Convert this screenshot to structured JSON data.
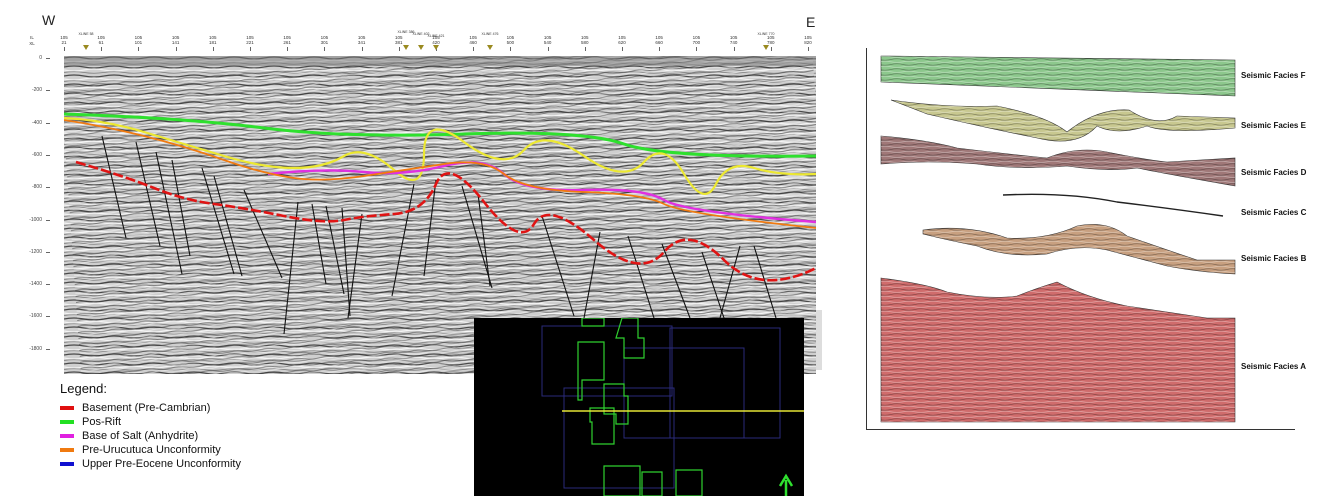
{
  "section": {
    "west": "W",
    "east": "E",
    "il_label": "IL",
    "xl_label": "XL",
    "il_ticks": [
      "105",
      "105",
      "105",
      "105",
      "105",
      "105",
      "105",
      "105",
      "105",
      "105",
      "105",
      "105",
      "105",
      "105",
      "105",
      "105",
      "105",
      "105",
      "105",
      "105"
    ],
    "xl_ticks": [
      "21",
      "61",
      "101",
      "141",
      "181",
      "221",
      "261",
      "301",
      "341",
      "381",
      "420",
      "460",
      "500",
      "540",
      "580",
      "620",
      "660",
      "700",
      "740",
      "780",
      "820"
    ],
    "well_tags": [
      "XLINE 58",
      "XLINE 386",
      "XLINE 402",
      "XLINE 421",
      "XLINE 476",
      "XLINE 770"
    ],
    "depth_ticks": [
      "0",
      "-200",
      "-400",
      "-600",
      "-800",
      "-1000",
      "-1200",
      "-1400",
      "-1600",
      "-1800"
    ]
  },
  "legend": {
    "title": "Legend:",
    "items": [
      {
        "label": "Basement (Pre-Cambrian)",
        "color": "#e01010"
      },
      {
        "label": "Pos-Rift",
        "color": "#22e022"
      },
      {
        "label": "Base of Salt (Anhydrite)",
        "color": "#e020e0"
      },
      {
        "label": "Pre-Urucutuca Unconformity",
        "color": "#f07a10"
      },
      {
        "label": "Upper Pre-Eocene Unconformity",
        "color": "#1010d0"
      }
    ]
  },
  "horizon_colors": {
    "pos_rift": "#2ee02e",
    "yellow": "#ece832",
    "salt": "#e030e0",
    "pre_urucutuca": "#f07a10",
    "basement": "#e01414"
  },
  "facies": [
    {
      "label": "Seismic Facies F",
      "color": "#8dc88d"
    },
    {
      "label": "Seismic Facies E",
      "color": "#c8c890"
    },
    {
      "label": "Seismic Facies D",
      "color": "#a07878"
    },
    {
      "label": "Seismic Facies C",
      "color": "#888888"
    },
    {
      "label": "Seismic Facies B",
      "color": "#c8a080"
    },
    {
      "label": "Seismic Facies A",
      "color": "#d06c6c"
    }
  ]
}
